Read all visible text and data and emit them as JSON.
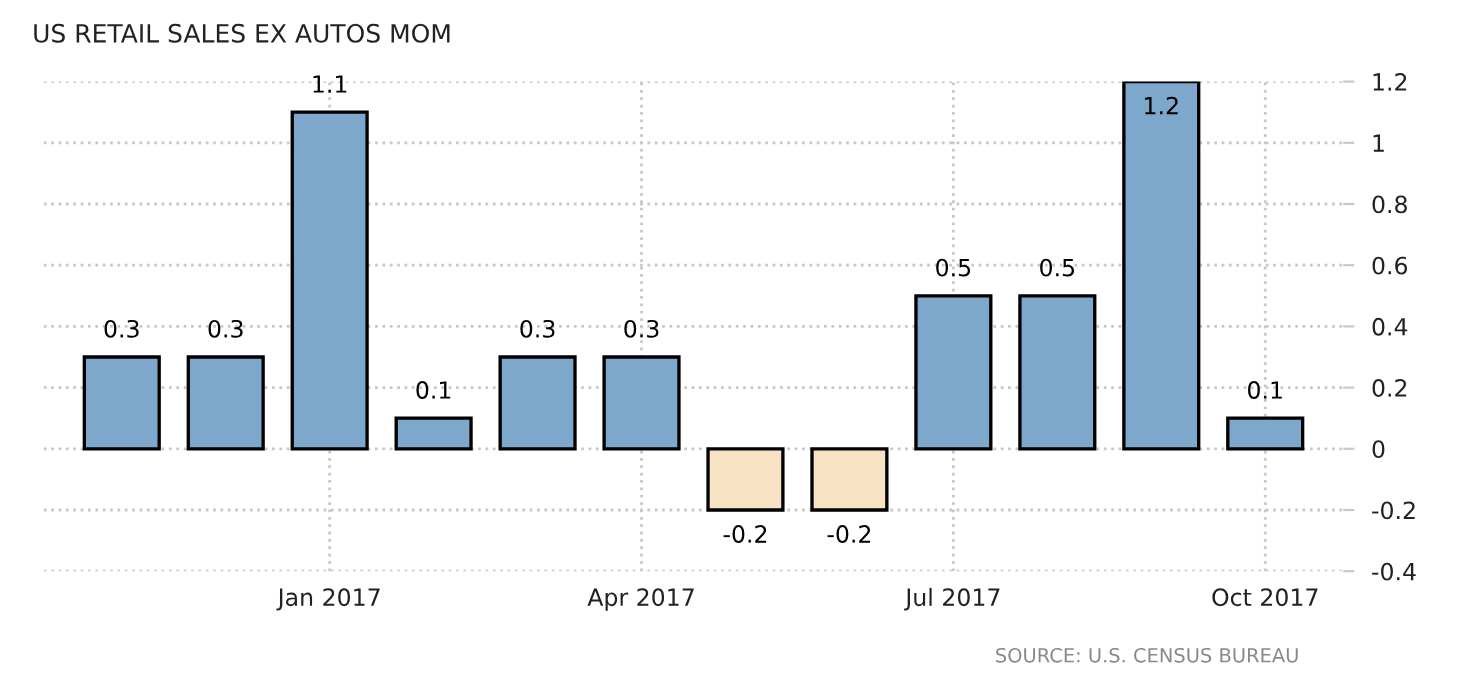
{
  "chart_data": {
    "type": "bar",
    "title": "US RETAIL SALES EX AUTOS MOM",
    "categories": [
      null,
      null,
      "Jan 2017",
      null,
      null,
      "Apr 2017",
      null,
      null,
      "Jul 2017",
      null,
      null,
      "Oct 2017"
    ],
    "values": [
      0.3,
      0.3,
      1.1,
      0.1,
      0.3,
      0.3,
      -0.2,
      -0.2,
      0.5,
      0.5,
      1.2,
      0.1
    ],
    "colors": [
      "#7ea7cc",
      "#7ea7cc",
      "#7ea7cc",
      "#7ea7cc",
      "#7ea7cc",
      "#7ea7cc",
      "#f7e3c4",
      "#f7e3c4",
      "#7ea7cc",
      "#7ea7cc",
      "#7ea7cc",
      "#7ea7cc"
    ],
    "ylim": [
      -0.4,
      1.2
    ],
    "yticks": [
      -0.4,
      -0.2,
      0,
      0.2,
      0.4,
      0.6,
      0.8,
      1,
      1.2
    ],
    "grid": true,
    "data_labels": true,
    "annotations": [
      "SOURCE: U.S. CENSUS BUREAU"
    ]
  }
}
